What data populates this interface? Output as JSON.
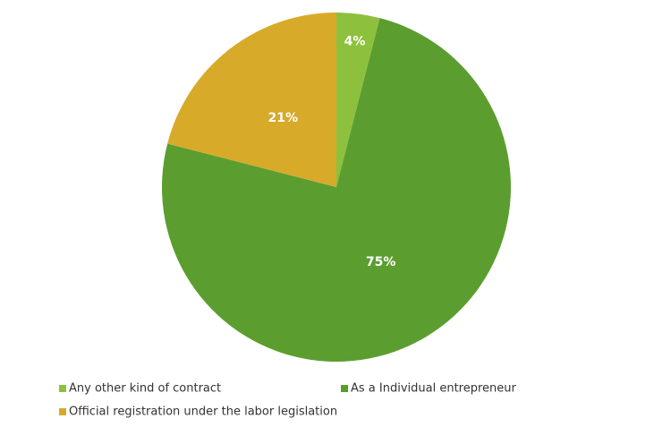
{
  "chart_data": {
    "type": "pie",
    "categories": [
      "Any other kind of contract",
      "As a Individual entrepreneur",
      "Official registration under the labor legislation"
    ],
    "values": [
      4,
      75,
      21
    ],
    "value_labels": [
      "4%",
      "75%",
      "21%"
    ],
    "colors": [
      "#8dc03d",
      "#5b9e2f",
      "#d8aa2a"
    ],
    "legend": "bottom"
  }
}
